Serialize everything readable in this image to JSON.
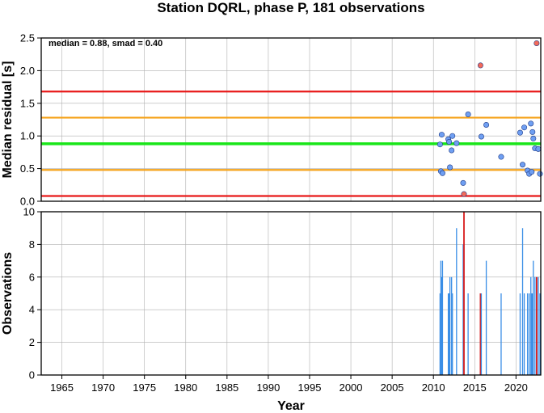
{
  "title": "Station DQRL, phase P, 181 observations",
  "xlabel": "Year",
  "colors": {
    "point_normal": "#6f9ff2",
    "point_outlier": "#f36a5a",
    "median_line": "#19e619",
    "smad_line": "#f5a31a",
    "limit_line": "#e81919",
    "bar_normal": "#3a8ee6",
    "bar_outlier": "#d81b1b"
  },
  "chart_data": [
    {
      "type": "scatter",
      "ylabel": "Median residual [s]",
      "annotation": "median = 0.88, smad = 0.40",
      "xlim": [
        1962.5,
        2023.0
      ],
      "ylim": [
        0.0,
        2.5
      ],
      "x_ticks": [
        "1965",
        "1970",
        "1975",
        "1980",
        "1985",
        "1990",
        "1995",
        "2000",
        "2005",
        "2010",
        "2015",
        "2020"
      ],
      "y_ticks": [
        "0.0",
        "0.5",
        "1.0",
        "1.5",
        "2.0",
        "2.5"
      ],
      "grid": true,
      "hlines": [
        {
          "y": 0.88,
          "role": "median"
        },
        {
          "y": 1.28,
          "role": "smad"
        },
        {
          "y": 0.48,
          "role": "smad"
        },
        {
          "y": 1.68,
          "role": "limit"
        },
        {
          "y": 0.08,
          "role": "limit"
        }
      ],
      "points": [
        {
          "x": 2010.8,
          "y": 0.87
        },
        {
          "x": 2010.9,
          "y": 0.46
        },
        {
          "x": 2011.0,
          "y": 1.02
        },
        {
          "x": 2011.1,
          "y": 0.43
        },
        {
          "x": 2011.8,
          "y": 0.95
        },
        {
          "x": 2011.9,
          "y": 0.91
        },
        {
          "x": 2012.0,
          "y": 0.52
        },
        {
          "x": 2012.2,
          "y": 0.78
        },
        {
          "x": 2012.3,
          "y": 1.0
        },
        {
          "x": 2012.8,
          "y": 0.89
        },
        {
          "x": 2013.6,
          "y": 0.28
        },
        {
          "x": 2013.7,
          "y": 0.11,
          "outlier": true
        },
        {
          "x": 2014.2,
          "y": 1.33
        },
        {
          "x": 2015.7,
          "y": 2.08,
          "outlier": true
        },
        {
          "x": 2015.8,
          "y": 0.99
        },
        {
          "x": 2016.4,
          "y": 1.17
        },
        {
          "x": 2018.2,
          "y": 0.68
        },
        {
          "x": 2020.5,
          "y": 1.05
        },
        {
          "x": 2020.8,
          "y": 0.56
        },
        {
          "x": 2021.0,
          "y": 1.13
        },
        {
          "x": 2021.4,
          "y": 0.47
        },
        {
          "x": 2021.6,
          "y": 0.42
        },
        {
          "x": 2021.8,
          "y": 1.19
        },
        {
          "x": 2021.9,
          "y": 0.45
        },
        {
          "x": 2022.0,
          "y": 1.06
        },
        {
          "x": 2022.1,
          "y": 0.96
        },
        {
          "x": 2022.3,
          "y": 0.81
        },
        {
          "x": 2022.5,
          "y": 2.42,
          "outlier": true
        },
        {
          "x": 2022.7,
          "y": 0.8
        },
        {
          "x": 2022.9,
          "y": 0.42
        }
      ]
    },
    {
      "type": "bar",
      "ylabel": "Observations",
      "xlim": [
        1962.5,
        2023.0
      ],
      "ylim": [
        0,
        10
      ],
      "x_ticks": [
        "1965",
        "1970",
        "1975",
        "1980",
        "1985",
        "1990",
        "1995",
        "2000",
        "2005",
        "2010",
        "2015",
        "2020"
      ],
      "y_ticks": [
        "0",
        "2",
        "4",
        "6",
        "8",
        "10"
      ],
      "grid": true,
      "bars": [
        {
          "x": 2010.8,
          "value": 5
        },
        {
          "x": 2010.9,
          "value": 7
        },
        {
          "x": 2011.0,
          "value": 6
        },
        {
          "x": 2011.1,
          "value": 7
        },
        {
          "x": 2011.8,
          "value": 5
        },
        {
          "x": 2011.9,
          "value": 5
        },
        {
          "x": 2012.0,
          "value": 6
        },
        {
          "x": 2012.2,
          "value": 6
        },
        {
          "x": 2012.3,
          "value": 5
        },
        {
          "x": 2012.8,
          "value": 9
        },
        {
          "x": 2013.6,
          "value": 8
        },
        {
          "x": 2013.7,
          "value": 10,
          "outlier": true
        },
        {
          "x": 2014.2,
          "value": 5
        },
        {
          "x": 2015.7,
          "value": 5,
          "outlier": true
        },
        {
          "x": 2015.8,
          "value": 5
        },
        {
          "x": 2016.4,
          "value": 7
        },
        {
          "x": 2018.2,
          "value": 5
        },
        {
          "x": 2020.5,
          "value": 5
        },
        {
          "x": 2020.8,
          "value": 9
        },
        {
          "x": 2021.0,
          "value": 5
        },
        {
          "x": 2021.4,
          "value": 5
        },
        {
          "x": 2021.6,
          "value": 5
        },
        {
          "x": 2021.8,
          "value": 6
        },
        {
          "x": 2021.9,
          "value": 5
        },
        {
          "x": 2022.0,
          "value": 5
        },
        {
          "x": 2022.1,
          "value": 7
        },
        {
          "x": 2022.3,
          "value": 6
        },
        {
          "x": 2022.5,
          "value": 6,
          "outlier": true
        },
        {
          "x": 2022.7,
          "value": 6
        },
        {
          "x": 2022.9,
          "value": 5
        }
      ]
    }
  ]
}
